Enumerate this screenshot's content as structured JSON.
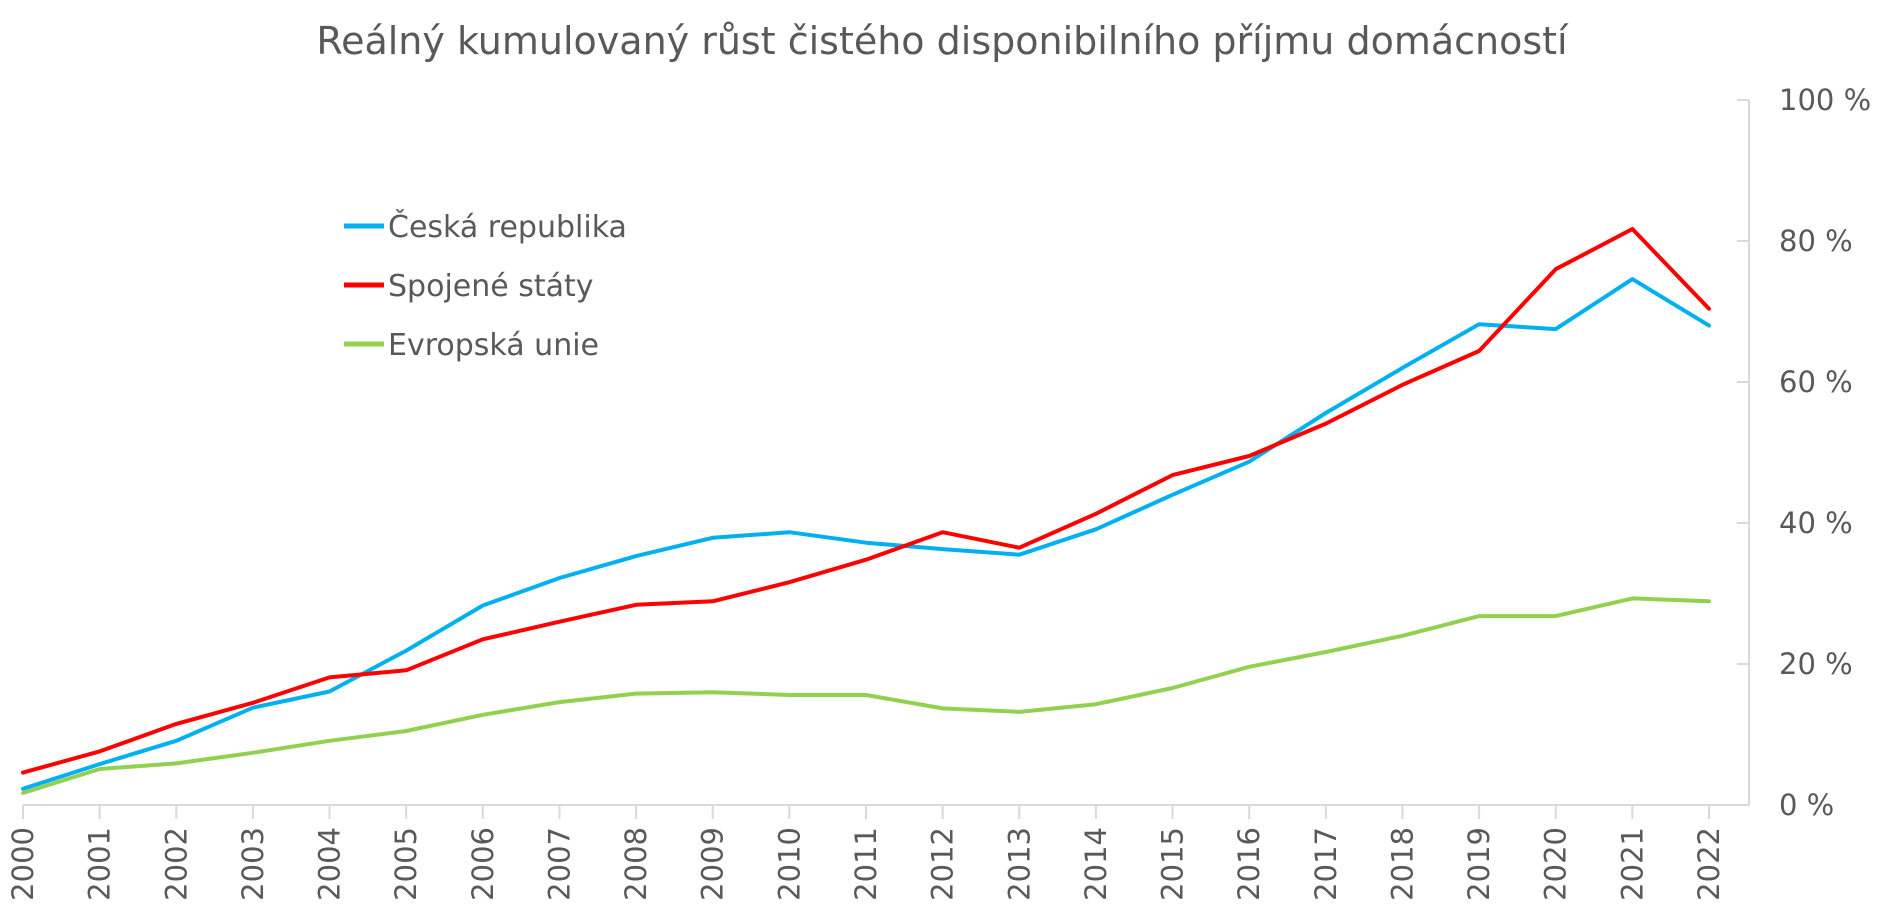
{
  "chart_data": {
    "type": "line",
    "title": "Reálný kumulovaný růst čistého disponibilního příjmu domácností",
    "categories": [
      "2000",
      "2001",
      "2002",
      "2003",
      "2004",
      "2005",
      "2006",
      "2007",
      "2008",
      "2009",
      "2010",
      "2011",
      "2012",
      "2013",
      "2014",
      "2015",
      "2016",
      "2017",
      "2018",
      "2019",
      "2020",
      "2021",
      "2022"
    ],
    "ylim": [
      0,
      100
    ],
    "y_ticks": [
      0,
      20,
      40,
      60,
      80,
      100
    ],
    "y_tick_labels": [
      "0 %",
      "20 %",
      "40 %",
      "60 %",
      "80 %",
      "100 %"
    ],
    "y_axis_side": "right",
    "grid": false,
    "legend_position": "top-left",
    "series": [
      {
        "name": "Česká republika",
        "color": "#00B0F0",
        "values": [
          2.3,
          5.8,
          9.1,
          13.8,
          16.1,
          21.9,
          28.3,
          32.2,
          35.3,
          37.9,
          38.7,
          37.2,
          36.3,
          35.5,
          39.1,
          44.0,
          48.7,
          55.6,
          62.0,
          68.2,
          67.5,
          74.6,
          68.0
        ]
      },
      {
        "name": "Spojené státy",
        "color": "#FF0000",
        "values": [
          4.6,
          7.6,
          11.5,
          14.5,
          18.1,
          19.1,
          23.5,
          26.0,
          28.4,
          28.9,
          31.6,
          34.8,
          38.7,
          36.5,
          41.3,
          46.8,
          49.5,
          54.1,
          59.6,
          64.4,
          76.0,
          81.7,
          70.4
        ]
      },
      {
        "name": "Evropská unie",
        "color": "#92D050",
        "values": [
          1.7,
          5.1,
          5.9,
          7.4,
          9.1,
          10.5,
          12.8,
          14.6,
          15.8,
          16.0,
          15.6,
          15.6,
          13.7,
          13.2,
          14.3,
          16.6,
          19.6,
          21.7,
          24.0,
          26.8,
          26.8,
          29.3,
          28.9
        ]
      }
    ]
  }
}
